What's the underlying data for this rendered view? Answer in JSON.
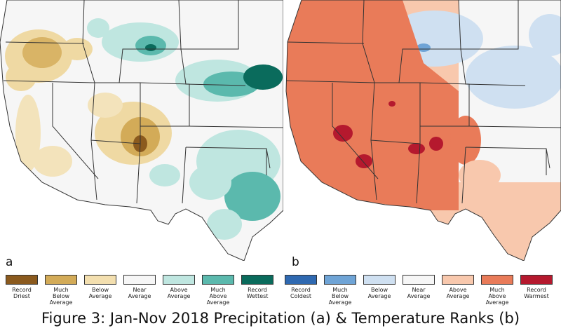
{
  "panels": {
    "a": {
      "label": "a"
    },
    "b": {
      "label": "b"
    }
  },
  "legend": [
    {
      "label": "Record\nDriest",
      "color": "#8b5a1e"
    },
    {
      "label": "Much\nBelow\nAverage",
      "color": "#d3ab58"
    },
    {
      "label": "Below\nAverage",
      "color": "#f3dfaf"
    },
    {
      "label": "Near\nAverage",
      "color": "#f6f6f6"
    },
    {
      "label": "Above\nAverage",
      "color": "#bfe6e0"
    },
    {
      "label": "Much\nAbove\nAverage",
      "color": "#5bb9ad"
    },
    {
      "label": "Record\nWettest",
      "color": "#0a6b5c"
    },
    {
      "label": "Record\nColdest",
      "color": "#2f69b1"
    },
    {
      "label": "Much\nBelow\nAverage",
      "color": "#6fa4d6"
    },
    {
      "label": "Below\nAverage",
      "color": "#cfe0f1"
    },
    {
      "label": "Near\nAverage",
      "color": "#f6f6f6"
    },
    {
      "label": "Above\nAverage",
      "color": "#f8c8ad"
    },
    {
      "label": "Much\nAbove\nAverage",
      "color": "#e97b59"
    },
    {
      "label": "Record\nWarmest",
      "color": "#b5192e"
    }
  ],
  "caption": "Figure 3: Jan-Nov 2018 Precipitation (a) & Temperature Ranks (b)"
}
